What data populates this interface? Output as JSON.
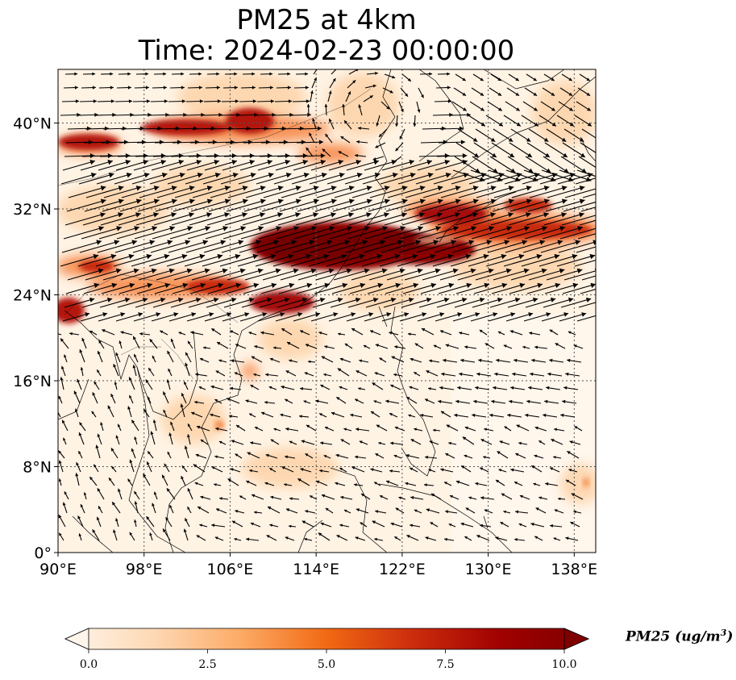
{
  "title": {
    "line1": "PM25 at 4km",
    "line2": "Time: 2024-02-23 00:00:00"
  },
  "map": {
    "extent": {
      "lon_min": 90,
      "lon_max": 140,
      "lat_min": 0,
      "lat_max": 45
    },
    "lon_ticks": [
      {
        "value": 90,
        "label": "90°E"
      },
      {
        "value": 98,
        "label": "98°E"
      },
      {
        "value": 106,
        "label": "106°E"
      },
      {
        "value": 114,
        "label": "114°E"
      },
      {
        "value": 122,
        "label": "122°E"
      },
      {
        "value": 130,
        "label": "130°E"
      },
      {
        "value": 138,
        "label": "138°E"
      }
    ],
    "lat_ticks": [
      {
        "value": 0,
        "label": "0°"
      },
      {
        "value": 8,
        "label": "8°N"
      },
      {
        "value": 16,
        "label": "16°N"
      },
      {
        "value": 24,
        "label": "24°N"
      },
      {
        "value": 32,
        "label": "32°N"
      },
      {
        "value": 40,
        "label": "40°N"
      }
    ],
    "gridlines": true,
    "wind_vectors": true
  },
  "colorbar": {
    "min": 0,
    "max": 10,
    "extend": "both",
    "ticks": [
      "0.0",
      "2.5",
      "5.0",
      "7.5",
      "10.0"
    ],
    "label_var": "PM25",
    "label_unit": "(ug/m",
    "label_exp": "3",
    "label_close": ")",
    "colors": [
      "#fff5eb",
      "#fdd9b5",
      "#fdab67",
      "#f16913",
      "#cb2c0d",
      "#a00000",
      "#7f0000"
    ]
  }
}
